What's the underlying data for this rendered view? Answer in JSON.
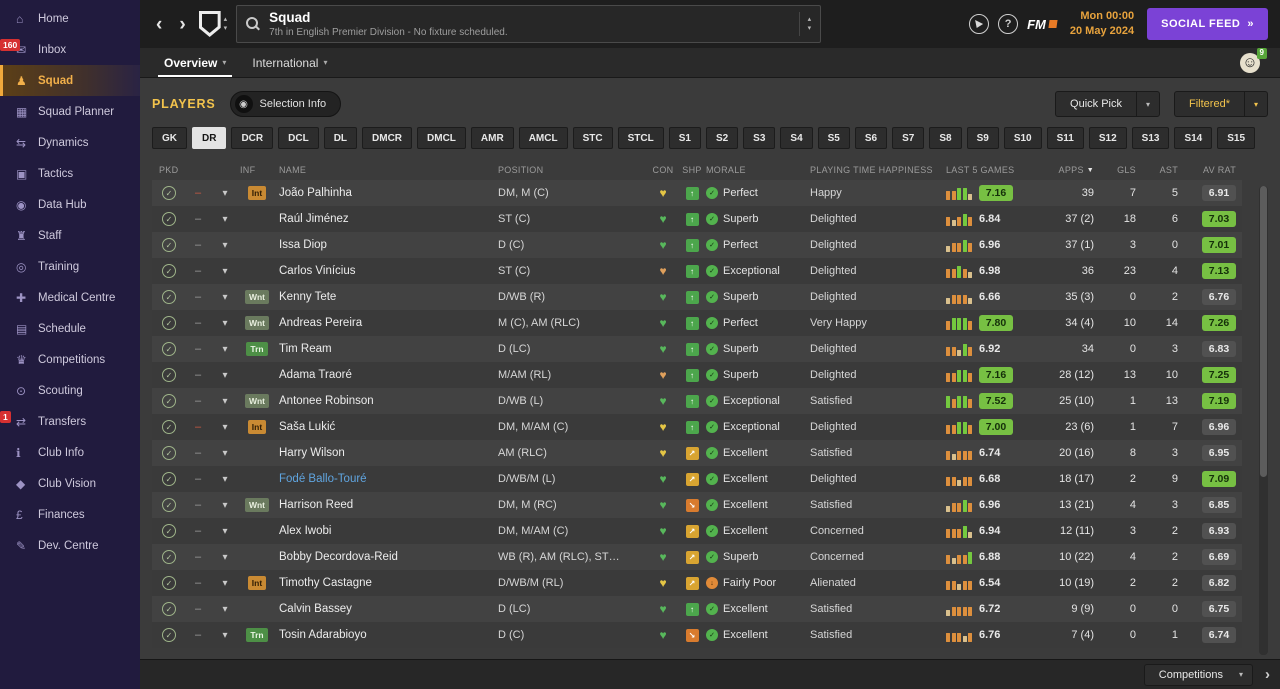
{
  "colors": {
    "accent_yellow": "#f2c34c",
    "sidebar_active_orange": "#f0a93c",
    "social_purple": "#7b42d6",
    "rating_green": "#77c043",
    "badge_red": "#d63031",
    "date_orange": "#e8a33d"
  },
  "icons": {
    "back": "‹",
    "forward": "›",
    "chevron_up": "▴",
    "chevron_down": "▾",
    "help": "?",
    "double_arrow": "»",
    "check": "✓",
    "dash": "–",
    "heart": "♥",
    "footer_chevron": "›",
    "selection_info": "◉",
    "smiley": "☺",
    "sidebar": {
      "home": "⌂",
      "inbox": "✉",
      "squad": "♟",
      "squad-planner": "▦",
      "dynamics": "⇆",
      "tactics": "▣",
      "data-hub": "◉",
      "staff": "♜",
      "training": "◎",
      "medical": "✚",
      "schedule": "▤",
      "competitions": "♛",
      "scouting": "⊙",
      "transfers": "⇄",
      "club-info": "ℹ",
      "club-vision": "◆",
      "finances": "£",
      "dev-centre": "✎"
    },
    "shp": {
      "green": "↑",
      "amber": "↗",
      "orange": "↘"
    },
    "morale": {
      "green": "✓",
      "orange": "↓"
    }
  },
  "sidebar": {
    "items": [
      {
        "label": "Home",
        "icon": "home"
      },
      {
        "label": "Inbox",
        "icon": "inbox",
        "badge": "160"
      },
      {
        "label": "Squad",
        "icon": "squad",
        "active": true
      },
      {
        "label": "Squad Planner",
        "icon": "squad-planner"
      },
      {
        "label": "Dynamics",
        "icon": "dynamics"
      },
      {
        "label": "Tactics",
        "icon": "tactics"
      },
      {
        "label": "Data Hub",
        "icon": "data-hub"
      },
      {
        "label": "Staff",
        "icon": "staff"
      },
      {
        "label": "Training",
        "icon": "training"
      },
      {
        "label": "Medical Centre",
        "icon": "medical"
      },
      {
        "label": "Schedule",
        "icon": "schedule"
      },
      {
        "label": "Competitions",
        "icon": "competitions"
      },
      {
        "label": "Scouting",
        "icon": "scouting"
      },
      {
        "label": "Transfers",
        "icon": "transfers",
        "badge": "1"
      },
      {
        "label": "Club Info",
        "icon": "club-info"
      },
      {
        "label": "Club Vision",
        "icon": "club-vision"
      },
      {
        "label": "Finances",
        "icon": "finances"
      },
      {
        "label": "Dev. Centre",
        "icon": "dev-centre"
      }
    ]
  },
  "topbar": {
    "title": "Squad",
    "subtitle": "7th in English Premier Division - No fixture scheduled.",
    "clock": "Mon 00:00",
    "date": "20 May 2024",
    "social_feed_label": "SOCIAL FEED",
    "fm_label": "FM"
  },
  "tabs": {
    "items": [
      {
        "label": "Overview",
        "active": true
      },
      {
        "label": "International",
        "active": false
      }
    ],
    "notifications": "9"
  },
  "players": {
    "title": "PLAYERS",
    "selection_info_label": "Selection Info",
    "quick_pick_label": "Quick Pick",
    "filtered_label": "Filtered*"
  },
  "filters": {
    "active": "DR",
    "options": [
      "GK",
      "DR",
      "DCR",
      "DCL",
      "DL",
      "DMCR",
      "DMCL",
      "AMR",
      "AMCL",
      "STC",
      "STCL",
      "S1",
      "S2",
      "S3",
      "S4",
      "S5",
      "S6",
      "S7",
      "S8",
      "S9",
      "S10",
      "S11",
      "S12",
      "S13",
      "S14",
      "S15"
    ]
  },
  "table": {
    "columns": [
      "PKD",
      "INF",
      "NAME",
      "POSITION",
      "CON",
      "SHP",
      "MORALE",
      "PLAYING TIME HAPPINESS",
      "LAST 5 GAMES",
      "APPS",
      "GLS",
      "AST",
      "AV RAT"
    ],
    "sort": {
      "column": "APPS",
      "glyph": "▼"
    },
    "rows": [
      {
        "badge": "Int",
        "dash": "red",
        "name": "João Palhinha",
        "pos": "DM, M (C)",
        "con": "yellow",
        "shp": "green",
        "morale": "Perfect",
        "morale_level": "green",
        "happiness": "Happy",
        "bars": [
          "o",
          "o",
          "g",
          "g",
          "t"
        ],
        "last5": "7.16",
        "last5_pill": true,
        "apps": "39",
        "gls": "7",
        "ast": "5",
        "avrat": "6.91",
        "avrat_pill": "gray"
      },
      {
        "name": "Raúl Jiménez",
        "pos": "ST (C)",
        "con": "green",
        "shp": "green",
        "morale": "Superb",
        "morale_level": "green",
        "happiness": "Delighted",
        "bars": [
          "o",
          "t",
          "o",
          "g",
          "o"
        ],
        "last5": "6.84",
        "last5_pill": false,
        "apps": "37 (2)",
        "gls": "18",
        "ast": "6",
        "avrat": "7.03",
        "avrat_pill": "green"
      },
      {
        "name": "Issa Diop",
        "pos": "D (C)",
        "con": "green",
        "shp": "green",
        "morale": "Perfect",
        "morale_level": "green",
        "happiness": "Delighted",
        "bars": [
          "t",
          "o",
          "o",
          "g",
          "o"
        ],
        "last5": "6.96",
        "last5_pill": false,
        "apps": "37 (1)",
        "gls": "3",
        "ast": "0",
        "avrat": "7.01",
        "avrat_pill": "green"
      },
      {
        "name": "Carlos Vinícius",
        "pos": "ST (C)",
        "con": "orange",
        "shp": "green",
        "morale": "Exceptional",
        "morale_level": "green",
        "happiness": "Delighted",
        "bars": [
          "o",
          "o",
          "g",
          "o",
          "t"
        ],
        "last5": "6.98",
        "last5_pill": false,
        "apps": "36",
        "gls": "23",
        "ast": "4",
        "avrat": "7.13",
        "avrat_pill": "green"
      },
      {
        "badge": "Wnt",
        "name": "Kenny Tete",
        "pos": "D/WB (R)",
        "con": "green",
        "shp": "green",
        "morale": "Superb",
        "morale_level": "green",
        "happiness": "Delighted",
        "bars": [
          "t",
          "o",
          "o",
          "o",
          "t"
        ],
        "last5": "6.66",
        "last5_pill": false,
        "apps": "35 (3)",
        "gls": "0",
        "ast": "2",
        "avrat": "6.76",
        "avrat_pill": "gray"
      },
      {
        "badge": "Wnt",
        "name": "Andreas Pereira",
        "pos": "M (C), AM (RLC)",
        "con": "green",
        "shp": "green",
        "morale": "Perfect",
        "morale_level": "green",
        "happiness": "Very Happy",
        "bars": [
          "o",
          "g",
          "g",
          "g",
          "o"
        ],
        "last5": "7.80",
        "last5_pill": true,
        "apps": "34 (4)",
        "gls": "10",
        "ast": "14",
        "avrat": "7.26",
        "avrat_pill": "green"
      },
      {
        "badge": "Trn",
        "name": "Tim Ream",
        "pos": "D (LC)",
        "con": "green",
        "shp": "green",
        "morale": "Superb",
        "morale_level": "green",
        "happiness": "Delighted",
        "bars": [
          "o",
          "o",
          "t",
          "g",
          "o"
        ],
        "last5": "6.92",
        "last5_pill": false,
        "apps": "34",
        "gls": "0",
        "ast": "3",
        "avrat": "6.83",
        "avrat_pill": "gray"
      },
      {
        "name": "Adama Traoré",
        "pos": "M/AM (RL)",
        "con": "orange",
        "shp": "green",
        "morale": "Superb",
        "morale_level": "green",
        "happiness": "Delighted",
        "bars": [
          "o",
          "o",
          "g",
          "g",
          "o"
        ],
        "last5": "7.16",
        "last5_pill": true,
        "apps": "28 (12)",
        "gls": "13",
        "ast": "10",
        "avrat": "7.25",
        "avrat_pill": "green"
      },
      {
        "badge": "Wnt",
        "name": "Antonee Robinson",
        "pos": "D/WB (L)",
        "con": "green",
        "shp": "green",
        "morale": "Exceptional",
        "morale_level": "green",
        "happiness": "Satisfied",
        "bars": [
          "g",
          "o",
          "g",
          "g",
          "o"
        ],
        "last5": "7.52",
        "last5_pill": true,
        "apps": "25 (10)",
        "gls": "1",
        "ast": "13",
        "avrat": "7.19",
        "avrat_pill": "green"
      },
      {
        "badge": "Int",
        "dash": "red",
        "name": "Saša Lukić",
        "pos": "DM, M/AM (C)",
        "con": "yellow",
        "shp": "green",
        "morale": "Exceptional",
        "morale_level": "green",
        "happiness": "Delighted",
        "bars": [
          "o",
          "o",
          "g",
          "g",
          "o"
        ],
        "last5": "7.00",
        "last5_pill": true,
        "apps": "23 (6)",
        "gls": "1",
        "ast": "7",
        "avrat": "6.96",
        "avrat_pill": "gray"
      },
      {
        "name": "Harry Wilson",
        "pos": "AM (RLC)",
        "con": "yellow",
        "shp": "amber",
        "morale": "Excellent",
        "morale_level": "green",
        "happiness": "Satisfied",
        "bars": [
          "o",
          "t",
          "o",
          "o",
          "o"
        ],
        "last5": "6.74",
        "last5_pill": false,
        "apps": "20 (16)",
        "gls": "8",
        "ast": "3",
        "avrat": "6.95",
        "avrat_pill": "gray"
      },
      {
        "name": "Fodé Ballo-Touré",
        "name_style": "loan",
        "pos": "D/WB/M (L)",
        "con": "green",
        "shp": "amber",
        "morale": "Excellent",
        "morale_level": "green",
        "happiness": "Delighted",
        "bars": [
          "o",
          "o",
          "t",
          "o",
          "o"
        ],
        "last5": "6.68",
        "last5_pill": false,
        "apps": "18 (17)",
        "gls": "2",
        "ast": "9",
        "avrat": "7.09",
        "avrat_pill": "green"
      },
      {
        "badge": "Wnt",
        "name": "Harrison Reed",
        "pos": "DM, M (RC)",
        "con": "green",
        "shp": "orange",
        "morale": "Excellent",
        "morale_level": "green",
        "happiness": "Satisfied",
        "bars": [
          "t",
          "o",
          "o",
          "g",
          "o"
        ],
        "last5": "6.96",
        "last5_pill": false,
        "apps": "13 (21)",
        "gls": "4",
        "ast": "3",
        "avrat": "6.85",
        "avrat_pill": "gray"
      },
      {
        "name": "Alex Iwobi",
        "pos": "DM, M/AM (C)",
        "con": "green",
        "shp": "amber",
        "morale": "Excellent",
        "morale_level": "green",
        "happiness": "Concerned",
        "bars": [
          "o",
          "o",
          "o",
          "g",
          "t"
        ],
        "last5": "6.94",
        "last5_pill": false,
        "apps": "12 (11)",
        "gls": "3",
        "ast": "2",
        "avrat": "6.93",
        "avrat_pill": "gray"
      },
      {
        "name": "Bobby Decordova-Reid",
        "pos": "WB (R), AM (RLC), ST…",
        "con": "green",
        "shp": "amber",
        "morale": "Superb",
        "morale_level": "green",
        "happiness": "Concerned",
        "bars": [
          "o",
          "t",
          "o",
          "o",
          "g"
        ],
        "last5": "6.88",
        "last5_pill": false,
        "apps": "10 (22)",
        "gls": "4",
        "ast": "2",
        "avrat": "6.69",
        "avrat_pill": "gray"
      },
      {
        "badge": "Int",
        "name": "Timothy Castagne",
        "pos": "D/WB/M (RL)",
        "con": "yellow",
        "shp": "amber",
        "morale": "Fairly Poor",
        "morale_level": "orange",
        "happiness": "Alienated",
        "bars": [
          "o",
          "o",
          "t",
          "o",
          "o"
        ],
        "last5": "6.54",
        "last5_pill": false,
        "apps": "10 (19)",
        "gls": "2",
        "ast": "2",
        "avrat": "6.82",
        "avrat_pill": "gray"
      },
      {
        "name": "Calvin Bassey",
        "pos": "D (LC)",
        "con": "green",
        "shp": "green",
        "morale": "Excellent",
        "morale_level": "green",
        "happiness": "Satisfied",
        "bars": [
          "t",
          "o",
          "o",
          "o",
          "o"
        ],
        "last5": "6.72",
        "last5_pill": false,
        "apps": "9 (9)",
        "gls": "0",
        "ast": "0",
        "avrat": "6.75",
        "avrat_pill": "gray"
      },
      {
        "badge": "Trn",
        "name": "Tosin Adarabioyo",
        "pos": "D (C)",
        "con": "green",
        "shp": "orange",
        "morale": "Excellent",
        "morale_level": "green",
        "happiness": "Satisfied",
        "bars": [
          "o",
          "o",
          "o",
          "t",
          "o"
        ],
        "last5": "6.76",
        "last5_pill": false,
        "apps": "7 (4)",
        "gls": "0",
        "ast": "1",
        "avrat": "6.74",
        "avrat_pill": "gray"
      }
    ]
  },
  "footer": {
    "competitions_label": "Competitions"
  }
}
